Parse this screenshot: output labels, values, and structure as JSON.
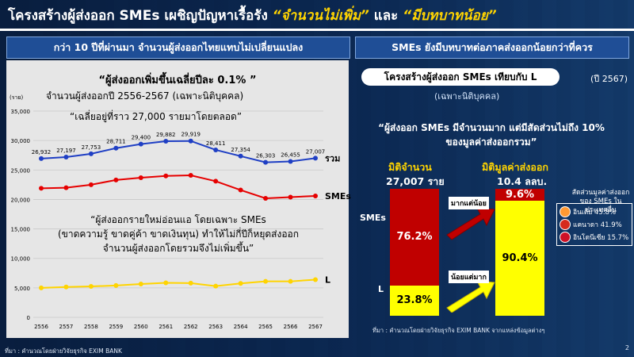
{
  "title": {
    "main": "โครงสร้างผู้ส่งออก SMEs เผชิญปัญหาเรื้อรัง",
    "q1": "“จำนวนไม่เพิ่ม”",
    "and": "และ",
    "q2": "“มีบทบาทน้อย”"
  },
  "left": {
    "header": "กว่า 10 ปีที่ผ่านมา จำนวนผู้ส่งออกไทยแทบไม่เปลี่ยนแปลง",
    "subtitle": "“ผู้ส่งออกเพิ่มขึ้นเฉลี่ยปีละ 0.1% ”",
    "chart_title": "จำนวนผู้ส่งออกปี 2556-2567 (เฉพาะนิติบุคคล)",
    "chart_note": "“เฉลี่ยอยู่ที่ราว 27,000 รายมาโดยตลอด”",
    "callout_1": "“ผู้ส่งออกรายใหม่อ่อนแอ โดยเฉพาะ SMEs",
    "callout_2": "(ขาดความรู้ ขาดคู่ค้า ขาดเงินทุน) ทำให้ไม่กี่ปีก็หยุดส่งออก",
    "callout_3": "จำนวนผู้ส่งออกโดยรวมจึงไม่เพิ่มขึ้น”",
    "unit": "(ราย)",
    "source": "ที่มา : คำนวณโดยฝ่ายวิจัยธุรกิจ EXIM BANK"
  },
  "right": {
    "header": "SMEs ยังมีบทบาทต่อภาคส่งออกน้อยกว่าที่ควร",
    "pill": "โครงสร้างผู้ส่งออก SMEs เทียบกับ L",
    "pill_year": "(ปี 2567)",
    "pill_sub": "(เฉพาะนิติบุคคล)",
    "quote_1": "“ผู้ส่งออก SMEs มีจำนวนมาก แต่มีสัดส่วนไม่ถึง 10%",
    "quote_2": "ของมูลค่าส่งออกรวม”",
    "dim_count": "มิติจำนวน",
    "dim_count_val": "27,007 ราย",
    "dim_value": "มิติมูลค่าส่งออก",
    "dim_value_val": "10.4 ลลบ.",
    "row_smes": "SMEs",
    "row_l": "L",
    "tag_many_little": "มากแต่น้อย",
    "tag_few_much": "น้อยแต่มาก",
    "share_title": "สัดส่วนมูลค่าส่งออกของ SMEs ในประเทศอื่น",
    "shares": [
      {
        "country": "อินเดีย",
        "value": "45.8%",
        "flag_color": "#ff9933"
      },
      {
        "country": "แคนาดา",
        "value": "41.9%",
        "flag_color": "#d52b1e"
      },
      {
        "country": "อินโดนีเซีย",
        "value": "15.7%",
        "flag_color": "#ce1126"
      }
    ],
    "source": "ที่มา : คำนวณโดยฝ่ายวิจัยธุรกิจ EXIM BANK จากแหล่งข้อมูลต่างๆ"
  },
  "page_number": "2",
  "colors": {
    "total": "#1f3fc4",
    "smes": "#e60000",
    "l": "#ffd400",
    "accent": "#ffd400"
  },
  "chart_data": [
    {
      "type": "line",
      "title": "จำนวนผู้ส่งออกปี 2556-2567 (เฉพาะนิติบุคคล)",
      "ylabel": "(ราย)",
      "x": [
        "2556",
        "2557",
        "2558",
        "2559",
        "2560",
        "2561",
        "2562",
        "2563",
        "2564",
        "2565",
        "2566",
        "2567"
      ],
      "ylim": [
        0,
        35000
      ],
      "yticks": [
        0,
        5000,
        10000,
        15000,
        20000,
        25000,
        30000,
        35000
      ],
      "grid": true,
      "series": [
        {
          "name": "รวม",
          "values": [
            26932,
            27197,
            27753,
            28711,
            29400,
            29882,
            29919,
            28411,
            27354,
            26303,
            26455,
            27007
          ],
          "labels_shown": true
        },
        {
          "name": "SMEs",
          "values": [
            21900,
            22000,
            22500,
            23300,
            23700,
            24000,
            24100,
            23100,
            21600,
            20200,
            20400,
            20600
          ]
        },
        {
          "name": "L",
          "values": [
            5000,
            5150,
            5250,
            5400,
            5650,
            5850,
            5800,
            5300,
            5750,
            6100,
            6100,
            6400
          ]
        }
      ]
    },
    {
      "type": "bar",
      "categories": [
        "มิติจำนวน",
        "มิติมูลค่าส่งออก"
      ],
      "series": [
        {
          "name": "SMEs",
          "values": [
            76.2,
            9.6
          ]
        },
        {
          "name": "L",
          "values": [
            23.8,
            90.4
          ]
        }
      ],
      "stacked": true
    }
  ]
}
